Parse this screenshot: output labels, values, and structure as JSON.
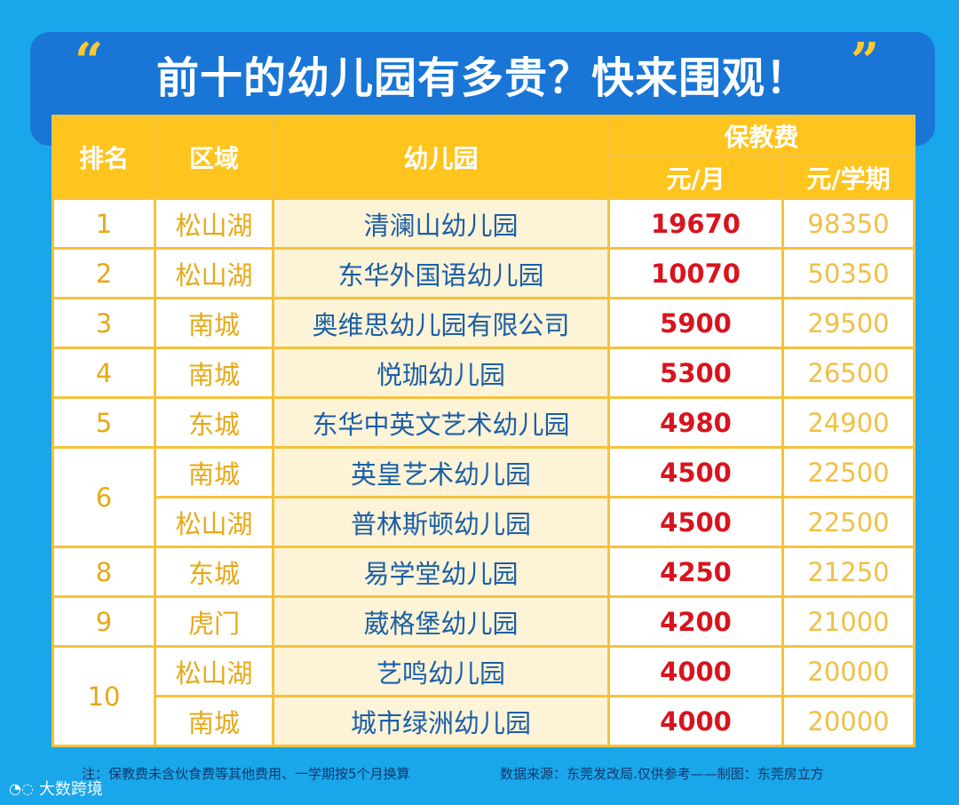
{
  "title": "前十的幼儿园有多贵？快来围观！",
  "quote_open": "“",
  "quote_close": "”",
  "headers": {
    "rank": "排名",
    "area": "区域",
    "kindergarten": "幼儿园",
    "fee": "保教费",
    "monthly": "元/月",
    "semester": "元/学期"
  },
  "rows": [
    {
      "rank": "1",
      "area": "松山湖",
      "name": "清澜山幼儿园",
      "monthly": "19670",
      "semester": "98350"
    },
    {
      "rank": "2",
      "area": "松山湖",
      "name": "东华外国语幼儿园",
      "monthly": "10070",
      "semester": "50350"
    },
    {
      "rank": "3",
      "area": "南城",
      "name": "奥维思幼儿园有限公司",
      "monthly": "5900",
      "semester": "29500"
    },
    {
      "rank": "4",
      "area": "南城",
      "name": "悦珈幼儿园",
      "monthly": "5300",
      "semester": "26500"
    },
    {
      "rank": "5",
      "area": "东城",
      "name": "东华中英文艺术幼儿园",
      "monthly": "4980",
      "semester": "24900"
    },
    {
      "rank": "6",
      "area": "南城",
      "name": "英皇艺术幼儿园",
      "monthly": "4500",
      "semester": "22500"
    },
    {
      "rank": "6",
      "area": "松山湖",
      "name": "普林斯顿幼儿园",
      "monthly": "4500",
      "semester": "22500"
    },
    {
      "rank": "8",
      "area": "东城",
      "name": "易学堂幼儿园",
      "monthly": "4250",
      "semester": "21250"
    },
    {
      "rank": "9",
      "area": "虎门",
      "name": "葳格堡幼儿园",
      "monthly": "4200",
      "semester": "21000"
    },
    {
      "rank": "10",
      "area": "松山湖",
      "name": "艺鸣幼儿园",
      "monthly": "4000",
      "semester": "20000"
    },
    {
      "rank": "10",
      "area": "南城",
      "name": "城市绿洲幼儿园",
      "monthly": "4000",
      "semester": "20000"
    }
  ],
  "footer": {
    "note": "注：保教费未含伙食费等其他费用、一学期按5个月换算",
    "source": "数据来源：东莞发改局.仅供参考——制图：东莞房立方"
  },
  "logo_text": "大数跨境",
  "colors": {
    "background": "#1aa6ea",
    "title_card": "#1976d6",
    "header_yellow": "#ffc51e",
    "monthly_red": "#d8141e",
    "name_blue": "#1a5fa8"
  }
}
